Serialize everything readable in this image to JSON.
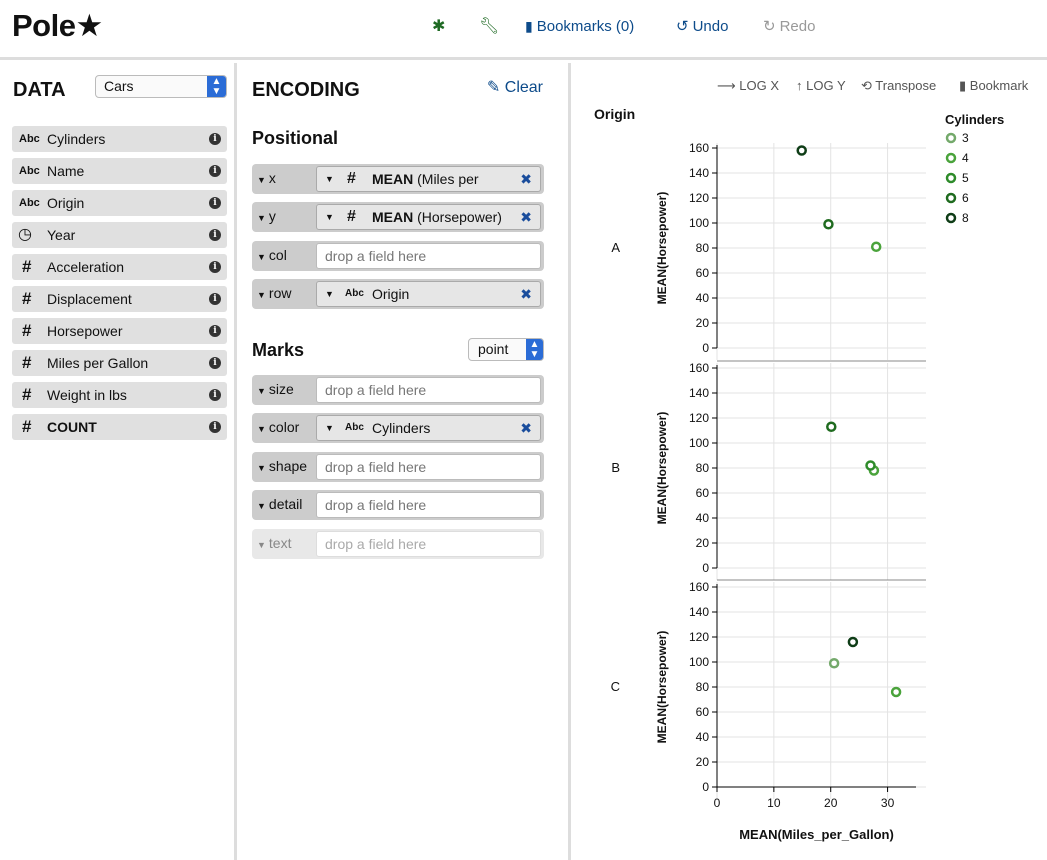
{
  "header": {
    "logo": "Pole★",
    "bookmarks": "Bookmarks (0)",
    "undo": "Undo",
    "redo": "Redo"
  },
  "data_pane": {
    "title": "DATA",
    "dataset": "Cars",
    "fields": [
      {
        "type": "Abc",
        "label": "Cylinders"
      },
      {
        "type": "Abc",
        "label": "Name"
      },
      {
        "type": "Abc",
        "label": "Origin"
      },
      {
        "type": "clock",
        "label": "Year"
      },
      {
        "type": "#",
        "label": "Acceleration"
      },
      {
        "type": "#",
        "label": "Displacement"
      },
      {
        "type": "#",
        "label": "Horsepower"
      },
      {
        "type": "#",
        "label": "Miles per Gallon"
      },
      {
        "type": "#",
        "label": "Weight in lbs"
      },
      {
        "type": "#",
        "label": "COUNT"
      }
    ]
  },
  "encoding": {
    "title": "ENCODING",
    "clear": "Clear",
    "positional_title": "Positional",
    "marks_title": "Marks",
    "mark_type": "point",
    "placeholder": "drop a field here",
    "shelves": {
      "x": {
        "name": "x",
        "agg": "MEAN",
        "field": "(Miles per",
        "type": "#"
      },
      "y": {
        "name": "y",
        "agg": "MEAN",
        "field": "(Horsepower)",
        "type": "#"
      },
      "col": {
        "name": "col"
      },
      "row": {
        "name": "row",
        "field": "Origin",
        "type": "Abc"
      },
      "size": {
        "name": "size"
      },
      "color": {
        "name": "color",
        "field": "Cylinders",
        "type": "Abc"
      },
      "shape": {
        "name": "shape"
      },
      "detail": {
        "name": "detail"
      },
      "text": {
        "name": "text"
      }
    }
  },
  "vis": {
    "toolbar": {
      "log_x": "LOG X",
      "log_y": "LOG Y",
      "transpose": "Transpose",
      "bookmark": "Bookmark"
    },
    "colors": {
      "3": "#74a96b",
      "4": "#4aa33b",
      "5": "#2e8b2a",
      "6": "#1f6b1f",
      "8": "#0f3d17"
    }
  },
  "chart_data": {
    "type": "scatter",
    "facet_title": "Origin",
    "xlabel": "MEAN(Miles_per_Gallon)",
    "ylabel": "MEAN(Horsepower)",
    "xlim": [
      0,
      35
    ],
    "ylim": [
      0,
      160
    ],
    "x_ticks": [
      0,
      10,
      20,
      30
    ],
    "y_ticks": [
      0,
      20,
      40,
      60,
      80,
      100,
      120,
      140,
      160
    ],
    "legend_title": "Cylinders",
    "legend": [
      "3",
      "4",
      "5",
      "6",
      "8"
    ],
    "rows": [
      {
        "label": "A",
        "points": [
          {
            "cyl": "8",
            "x": 14.9,
            "y": 158
          },
          {
            "cyl": "6",
            "x": 19.6,
            "y": 99
          },
          {
            "cyl": "4",
            "x": 28.0,
            "y": 81
          }
        ]
      },
      {
        "label": "B",
        "points": [
          {
            "cyl": "6",
            "x": 20.1,
            "y": 113
          },
          {
            "cyl": "4",
            "x": 27.6,
            "y": 78
          },
          {
            "cyl": "5",
            "x": 27.0,
            "y": 82
          }
        ]
      },
      {
        "label": "C",
        "points": [
          {
            "cyl": "3",
            "x": 20.6,
            "y": 99
          },
          {
            "cyl": "8",
            "x": 23.9,
            "y": 116
          },
          {
            "cyl": "4",
            "x": 31.5,
            "y": 76
          }
        ]
      }
    ]
  }
}
